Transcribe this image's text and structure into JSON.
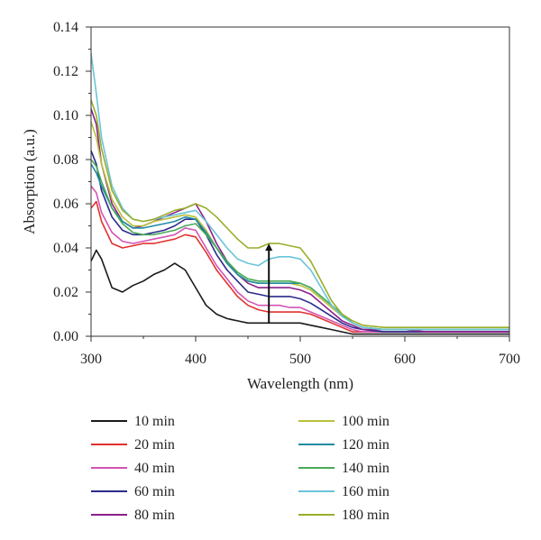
{
  "chart_data": {
    "type": "line",
    "xlabel": "Wavelength (nm)",
    "ylabel": "Absorption (a.u.)",
    "xlim": [
      300,
      700
    ],
    "ylim": [
      0,
      0.14
    ],
    "x_ticks": [
      300,
      400,
      500,
      600,
      700
    ],
    "y_ticks": [
      "0.00",
      "0.02",
      "0.04",
      "0.06",
      "0.08",
      "0.10",
      "0.12",
      "0.14"
    ],
    "grid": false,
    "legend_placement": "bottom, two columns",
    "x": [
      300,
      305,
      310,
      320,
      330,
      340,
      350,
      360,
      370,
      380,
      390,
      400,
      410,
      420,
      430,
      440,
      450,
      460,
      470,
      480,
      490,
      500,
      510,
      520,
      530,
      540,
      550,
      560,
      580,
      600,
      620,
      650,
      680,
      700
    ],
    "series": [
      {
        "name": "10 min",
        "color": "#1a1a1a",
        "values": [
          0.034,
          0.039,
          0.035,
          0.022,
          0.02,
          0.023,
          0.025,
          0.028,
          0.03,
          0.033,
          0.03,
          0.022,
          0.014,
          0.01,
          0.008,
          0.007,
          0.006,
          0.006,
          0.006,
          0.006,
          0.006,
          0.006,
          0.005,
          0.004,
          0.003,
          0.002,
          0.001,
          0.001,
          0.001,
          0.001,
          0.001,
          0.001,
          0.001,
          0.001
        ]
      },
      {
        "name": "20 min",
        "color": "#e0322e",
        "values": [
          0.058,
          0.061,
          0.052,
          0.042,
          0.04,
          0.041,
          0.042,
          0.042,
          0.043,
          0.044,
          0.046,
          0.045,
          0.038,
          0.03,
          0.024,
          0.018,
          0.014,
          0.012,
          0.011,
          0.011,
          0.011,
          0.011,
          0.01,
          0.008,
          0.006,
          0.004,
          0.002,
          0.002,
          0.002,
          0.002,
          0.002,
          0.002,
          0.002,
          0.002
        ]
      },
      {
        "name": "40 min",
        "color": "#d454b4",
        "values": [
          0.068,
          0.065,
          0.056,
          0.047,
          0.043,
          0.042,
          0.043,
          0.044,
          0.045,
          0.046,
          0.049,
          0.048,
          0.04,
          0.032,
          0.026,
          0.02,
          0.016,
          0.014,
          0.014,
          0.014,
          0.013,
          0.013,
          0.011,
          0.009,
          0.007,
          0.005,
          0.003,
          0.002,
          0.002,
          0.002,
          0.002,
          0.002,
          0.002,
          0.002
        ]
      },
      {
        "name": "60 min",
        "color": "#2a2a8c",
        "values": [
          0.084,
          0.078,
          0.066,
          0.054,
          0.048,
          0.046,
          0.046,
          0.047,
          0.048,
          0.05,
          0.053,
          0.053,
          0.046,
          0.037,
          0.03,
          0.025,
          0.02,
          0.019,
          0.018,
          0.018,
          0.018,
          0.017,
          0.015,
          0.012,
          0.009,
          0.006,
          0.004,
          0.003,
          0.002,
          0.002,
          0.002,
          0.002,
          0.002,
          0.002
        ]
      },
      {
        "name": "80 min",
        "color": "#8c1f8c",
        "values": [
          0.103,
          0.096,
          0.078,
          0.06,
          0.052,
          0.049,
          0.05,
          0.052,
          0.054,
          0.056,
          0.058,
          0.06,
          0.052,
          0.042,
          0.034,
          0.028,
          0.024,
          0.022,
          0.022,
          0.022,
          0.022,
          0.021,
          0.019,
          0.015,
          0.011,
          0.007,
          0.005,
          0.003,
          0.003,
          0.003,
          0.002,
          0.002,
          0.002,
          0.002
        ]
      },
      {
        "name": "100 min",
        "color": "#b8c03c",
        "values": [
          0.097,
          0.09,
          0.078,
          0.062,
          0.054,
          0.05,
          0.05,
          0.052,
          0.053,
          0.054,
          0.055,
          0.054,
          0.048,
          0.04,
          0.033,
          0.028,
          0.025,
          0.024,
          0.024,
          0.024,
          0.024,
          0.023,
          0.021,
          0.017,
          0.013,
          0.009,
          0.006,
          0.004,
          0.003,
          0.003,
          0.003,
          0.003,
          0.003,
          0.003
        ]
      },
      {
        "name": "120 min",
        "color": "#1f8ca0",
        "values": [
          0.078,
          0.074,
          0.068,
          0.058,
          0.052,
          0.049,
          0.049,
          0.05,
          0.051,
          0.052,
          0.054,
          0.053,
          0.047,
          0.04,
          0.033,
          0.028,
          0.025,
          0.024,
          0.024,
          0.024,
          0.024,
          0.024,
          0.022,
          0.018,
          0.014,
          0.01,
          0.006,
          0.004,
          0.003,
          0.003,
          0.003,
          0.003,
          0.003,
          0.003
        ]
      },
      {
        "name": "140 min",
        "color": "#4aaa58",
        "values": [
          0.08,
          0.077,
          0.07,
          0.058,
          0.051,
          0.047,
          0.046,
          0.046,
          0.047,
          0.048,
          0.05,
          0.051,
          0.046,
          0.04,
          0.034,
          0.029,
          0.026,
          0.025,
          0.025,
          0.025,
          0.025,
          0.024,
          0.022,
          0.018,
          0.014,
          0.01,
          0.006,
          0.004,
          0.003,
          0.003,
          0.003,
          0.003,
          0.003,
          0.003
        ]
      },
      {
        "name": "160 min",
        "color": "#6ac4d8",
        "values": [
          0.128,
          0.11,
          0.09,
          0.068,
          0.058,
          0.053,
          0.052,
          0.053,
          0.054,
          0.055,
          0.056,
          0.057,
          0.052,
          0.046,
          0.04,
          0.035,
          0.033,
          0.032,
          0.035,
          0.036,
          0.036,
          0.035,
          0.03,
          0.022,
          0.014,
          0.009,
          0.006,
          0.004,
          0.003,
          0.003,
          0.003,
          0.003,
          0.003,
          0.003
        ]
      },
      {
        "name": "180 min",
        "color": "#9aae2a",
        "values": [
          0.107,
          0.1,
          0.085,
          0.066,
          0.057,
          0.053,
          0.052,
          0.053,
          0.055,
          0.057,
          0.058,
          0.06,
          0.058,
          0.054,
          0.049,
          0.044,
          0.04,
          0.04,
          0.042,
          0.042,
          0.041,
          0.04,
          0.034,
          0.025,
          0.016,
          0.01,
          0.007,
          0.005,
          0.004,
          0.004,
          0.004,
          0.004,
          0.004,
          0.004
        ]
      }
    ],
    "annotations": [
      {
        "type": "arrow",
        "x": 470,
        "from_y": 0.006,
        "to_y": 0.042,
        "direction": "up"
      }
    ]
  }
}
